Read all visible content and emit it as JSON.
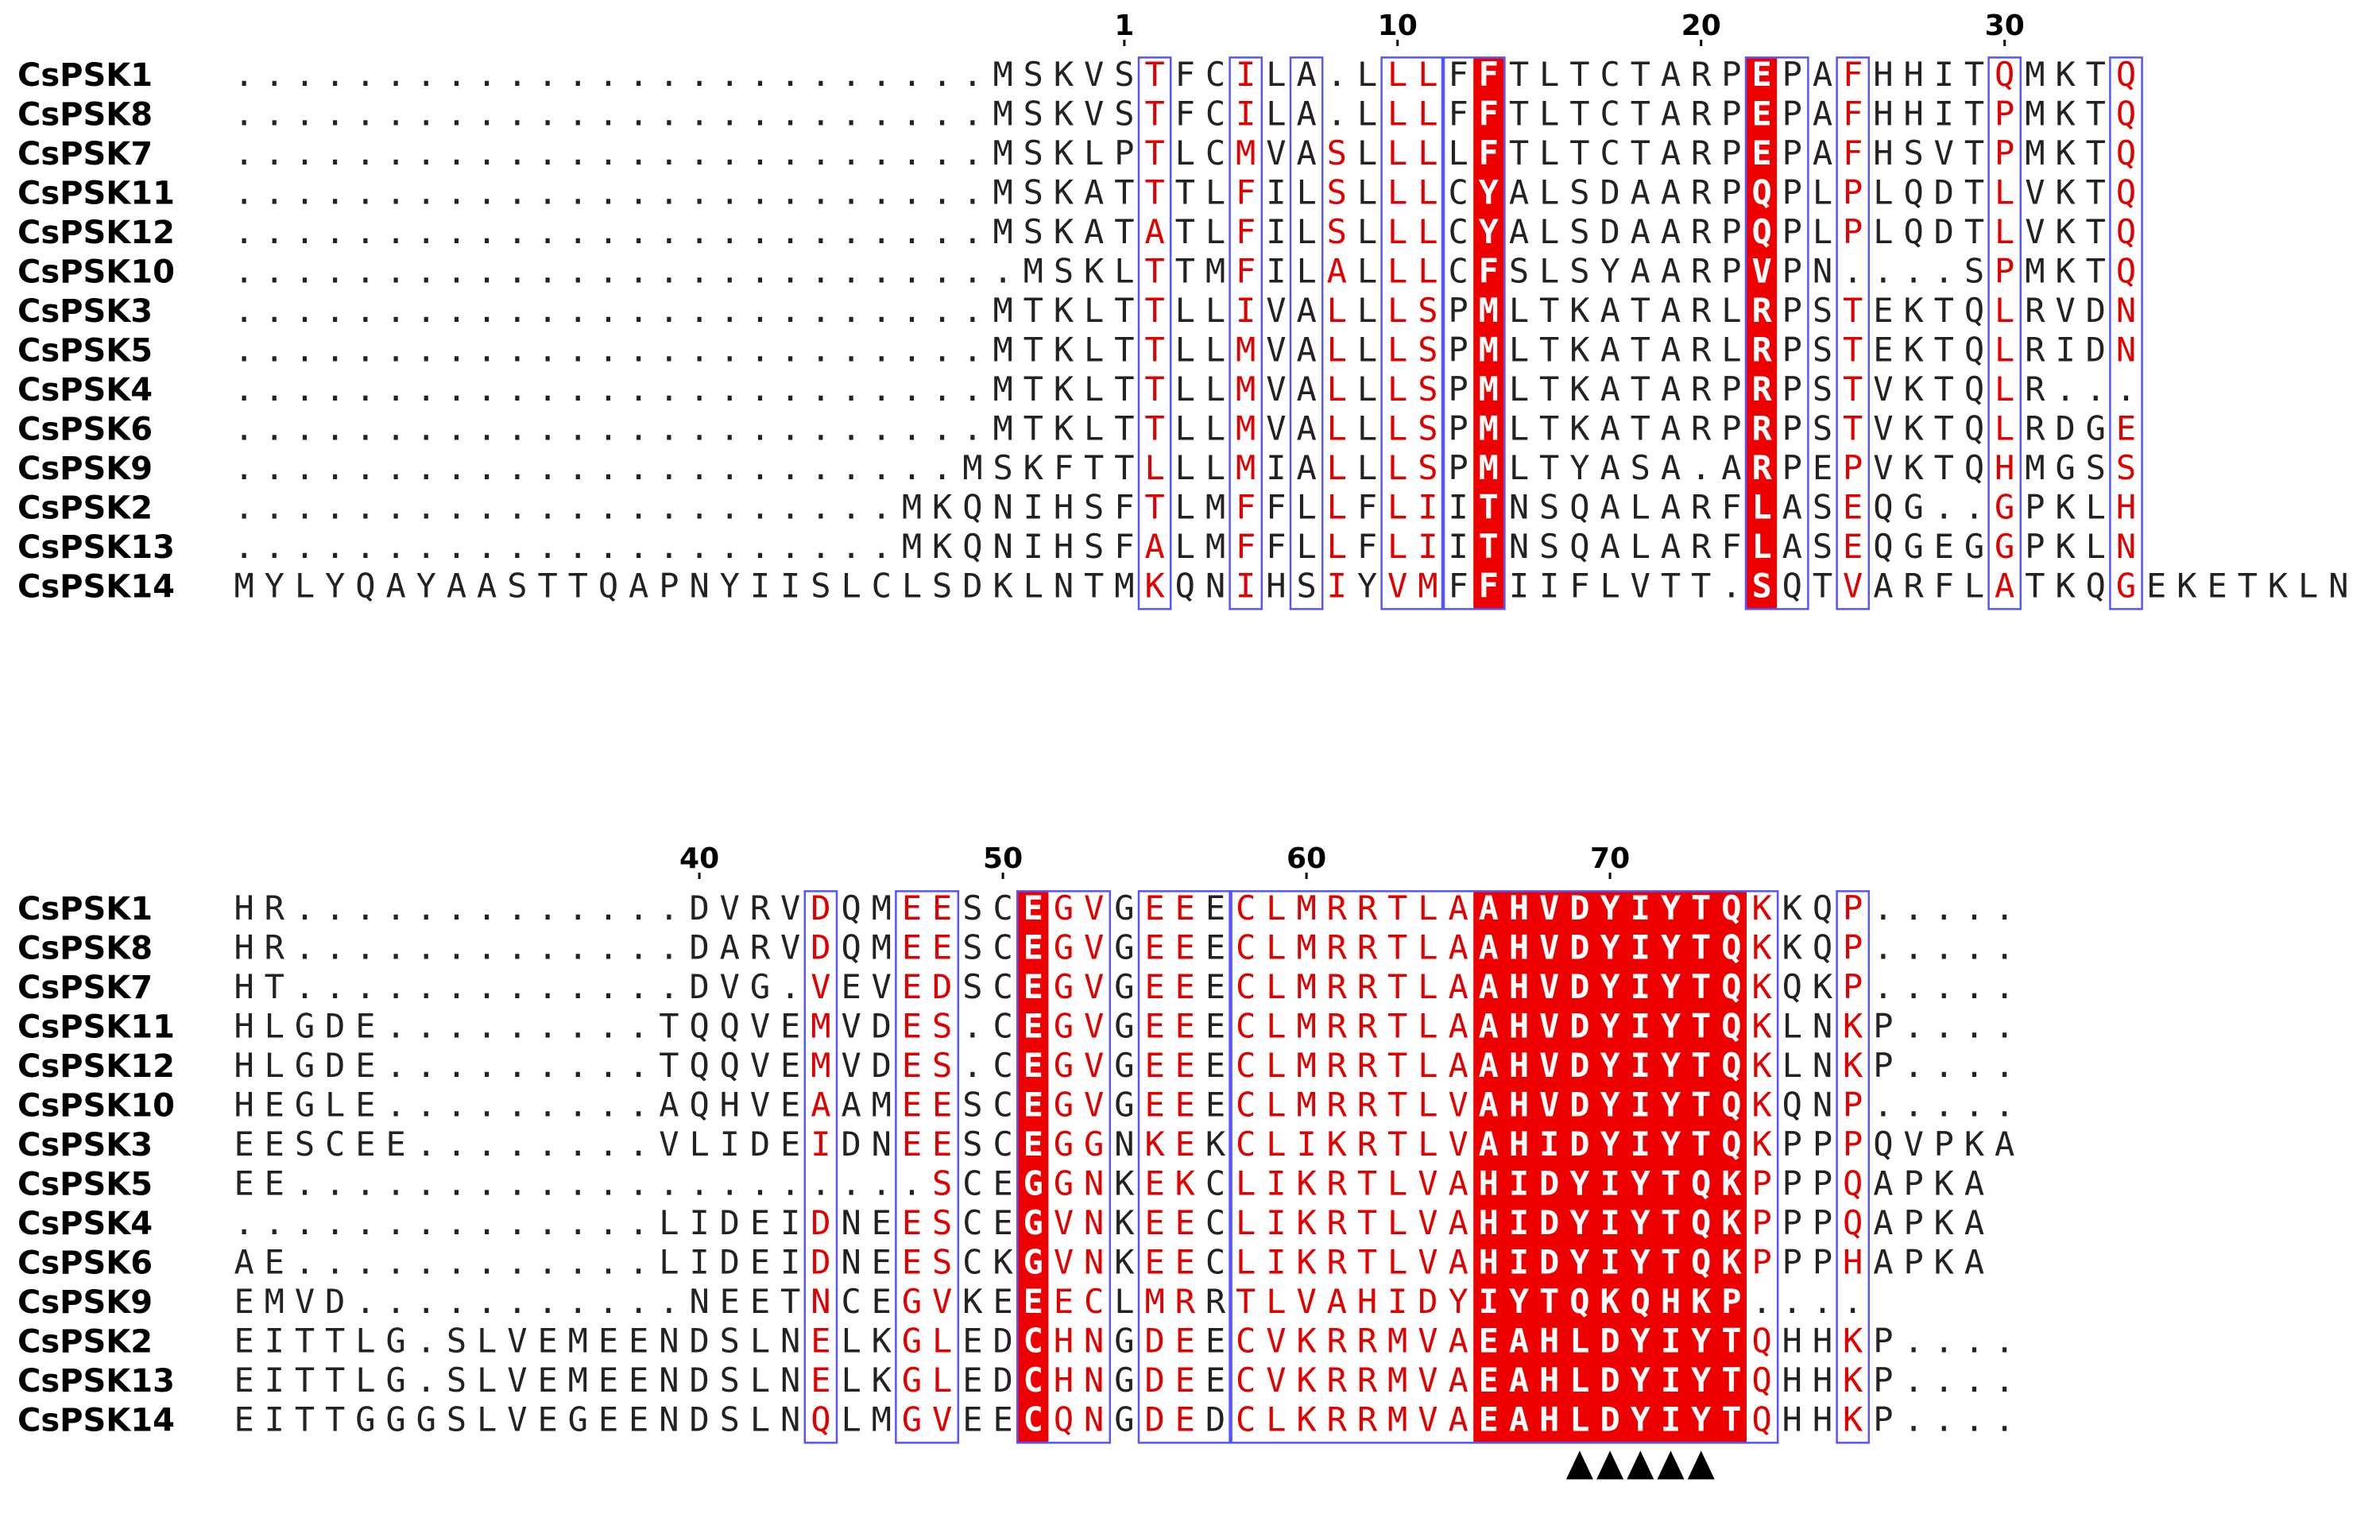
{
  "colors": {
    "identical_bg": "#ee0000",
    "identical_text": "#ffffff",
    "similar_text": "#e00000",
    "normal_text": "#222222",
    "box": "#5555ff",
    "marker": "#000000"
  },
  "blocks": [
    {
      "id": "block-1",
      "names": [
        "CsPSK1",
        "CsPSK8",
        "CsPSK7",
        "CsPSK11",
        "CsPSK12",
        "CsPSK10",
        "CsPSK3",
        "CsPSK5",
        "CsPSK4",
        "CsPSK6",
        "CsPSK9",
        "CsPSK2",
        "CsPSK13",
        "CsPSK14"
      ],
      "sequences": [
        ".........................MSKVSTFCILA.LLLFFTLTCTARPEPAFHHITQMKTQ",
        ".........................MSKVSTFCILA.LLLFFTLTCTARPEPAFHHITPMKTQ",
        ".........................MSKLPTLCMVASLLLLFTLTCTARPEPAFHSVTPMKTQ",
        ".........................MSKATTTLFILSLLLCYALSDAARPQPLPLQDTLVKTQ",
        ".........................MSKATATLFILSLLLCYALSDAARPQPLPLQDTLVKTQ",
        "..........................MSKLTTMFILALLLCFSLSYAARPVPN....SPMKTQ",
        ".........................MTKLTTLLIVALLLSPMLTKATARLRPSTEKTQLRVDN",
        ".........................MTKLTTLLMVALLLSPMLTKATARLRPSTEKTQLRIDN",
        ".........................MTKLTTLLMVALLLSPMLTKATARPRPSTVKTQLR...",
        ".........................MTKLTTLLMVALLLSPMLTKATARPRPSTVKTQLRDGE",
        "........................MSKFTTLLLMIALLLSPMLTYASA.ARPEPVKTQHMGSS",
        "......................MKQNIHSFTLMFFLLFLIITNSQALARFLASEQG..GPKLH",
        "......................MKQNIHSFALMFFLLFLIITNSQALARFLASEQGEGGPKLN",
        "MYLYQAYAASTTQAPNYIISLCLSDKLNTMKQNIHSIYVMFFIIFLVTT.SQTVARFLATKQGEKETKLN"
      ],
      "numbering": [
        {
          "label": "1",
          "col": 29
        },
        {
          "label": "10",
          "col": 38
        },
        {
          "label": "20",
          "col": 48
        },
        {
          "label": "30",
          "col": 58
        }
      ],
      "identical_columns": [
        41,
        50
      ],
      "similar_columns": [
        30,
        33,
        36,
        38,
        39,
        41,
        50,
        53,
        58,
        62
      ],
      "boxes": [
        {
          "start": 30,
          "end": 30
        },
        {
          "start": 33,
          "end": 33
        },
        {
          "start": 35,
          "end": 35
        },
        {
          "start": 38,
          "end": 39
        },
        {
          "start": 40,
          "end": 41
        },
        {
          "start": 50,
          "end": 51
        },
        {
          "start": 53,
          "end": 53
        },
        {
          "start": 58,
          "end": 58
        },
        {
          "start": 62,
          "end": 62
        }
      ],
      "markers": []
    },
    {
      "id": "block-2",
      "names": [
        "CsPSK1",
        "CsPSK8",
        "CsPSK7",
        "CsPSK11",
        "CsPSK12",
        "CsPSK10",
        "CsPSK3",
        "CsPSK5",
        "CsPSK4",
        "CsPSK6",
        "CsPSK9",
        "CsPSK2",
        "CsPSK13",
        "CsPSK14"
      ],
      "sequences": [
        "HR.............DVRVDQMEESCEGVGEEECLMRRTLAAHVDYIYTQKKQP.....",
        "HR.............DARVDQMEESCEGVGEEECLMRRTLAAHVDYIYTQKKQP.....",
        "HT.............DVG.VEVEDSCEGVGEEECLMRRTLAAHVDYIYTQKQKP.....",
        "HLGDE.........TQQVEMVDES.CEGVGEEECLMRRTLAAHVDYIYTQKLNKP....",
        "HLGDE.........TQQVEMVDES.CEGVGEEECLMRRTLAAHVDYIYTQKLNKP....",
        "HEGLE.........AQHVEAAMEESCEGVGEEECLMRRTLVAHVDYIYTQKQNP.....",
        "EESCEE........VLIDEIDNEESCEGGNKEKCLIKRTLVAHIDYIYTQKPPPQVPKA",
        "EE.....................SCEGGNKEKCLIKRTLVAHIDYIYTQKPPPQAPKA",
        "..............LIDEIDNEESCEGVNKEECLIKRTLVAHIDYIYTQKPPPQAPKA",
        "AE............LIDEIDNEESCKGVNKEECLIKRTLVAHIDYIYTQKPPPHAPKA",
        "EMVD...........NEETNCEGVKEEECLMRRTLVAHIDYIYTQKQHKP....",
        "EITTLG.SLVEMEENDSLNELKGLEDCHNGDEECVKRRMVAEAHLDYIYTQHHKP....",
        "EITTLG.SLVEMEENDSLNELKGLEDCHNGDEECVKRRMVAEAHLDYIYTQHHKP....",
        "EITTGGGSLVEGEENDSLNQLMGVEECQNGDEDCLKRRMVAEAHLDYIYTQHHKP...."
      ],
      "numbering": [
        {
          "label": "40",
          "col": 15
        },
        {
          "label": "50",
          "col": 25
        },
        {
          "label": "60",
          "col": 35
        },
        {
          "label": "70",
          "col": 45
        }
      ],
      "identical_columns": [
        26,
        41,
        42,
        43,
        44,
        45,
        46,
        47,
        48,
        49
      ],
      "similar_columns": [
        19,
        22,
        23,
        27,
        28,
        30,
        31,
        33,
        34,
        35,
        36,
        37,
        38,
        39,
        40,
        50,
        53
      ],
      "boxes": [
        {
          "start": 19,
          "end": 19
        },
        {
          "start": 22,
          "end": 23
        },
        {
          "start": 26,
          "end": 28
        },
        {
          "start": 30,
          "end": 32
        },
        {
          "start": 33,
          "end": 50
        },
        {
          "start": 53,
          "end": 53
        }
      ],
      "markers": [
        44,
        45,
        46,
        47,
        48
      ]
    }
  ]
}
